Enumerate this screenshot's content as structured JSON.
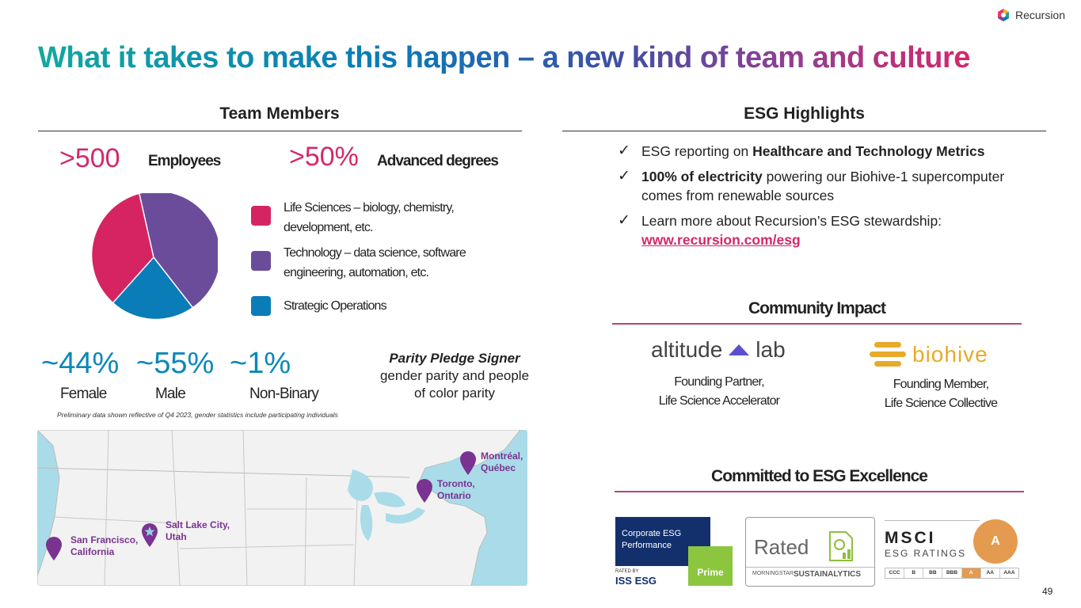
{
  "header": {
    "title": "What it takes to make this happen – a new kind of team and culture",
    "logo_text": "Recursion"
  },
  "team": {
    "heading": "Team Members",
    "employees_value": ">500",
    "employees_label": "Employees",
    "degrees_value": ">50%",
    "degrees_label": "Advanced degrees",
    "legend": [
      {
        "line1": "Life Sciences – biology, chemistry,",
        "line2": "development, etc.",
        "color": "#d62463"
      },
      {
        "line1": "Technology – data science, software",
        "line2": "engineering, automation, etc.",
        "color": "#6b4c9a"
      },
      {
        "line1": "Strategic Operations",
        "line2": "",
        "color": "#0a7cb8"
      }
    ],
    "stats": [
      {
        "value": "~44%",
        "label": "Female"
      },
      {
        "value": "~55%",
        "label": "Male"
      },
      {
        "value": "~1%",
        "label": "Non-Binary"
      }
    ],
    "pledge_title": "Parity Pledge Signer",
    "pledge_line1": "gender parity and people",
    "pledge_line2": "of color parity",
    "footnote": "Preliminary data shown reflective of Q4 2023, gender statistics include participating individuals"
  },
  "map": {
    "cities": [
      {
        "line1": "San Francisco,",
        "line2": "California"
      },
      {
        "line1": "Salt Lake City,",
        "line2": "Utah"
      },
      {
        "line1": "Toronto,",
        "line2": "Ontario"
      },
      {
        "line1": "Montréal,",
        "line2": "Québec"
      }
    ]
  },
  "esg": {
    "heading": "ESG Highlights",
    "item1_pre": "ESG reporting on ",
    "item1_bold": "Healthcare and Technology Metrics",
    "item2_bold": "100% of electricity",
    "item2_post": " powering our Biohive-1 supercomputer",
    "item2_line2": "comes from renewable sources",
    "item3_line1": "Learn more about Recursion’s ESG stewardship:",
    "item3_link": "www.recursion.com/esg"
  },
  "community": {
    "heading": "Community Impact",
    "altitude_a": "altitude",
    "altitude_b": "lab",
    "altitude_cap1": "Founding Partner,",
    "altitude_cap2": "Life Science Accelerator",
    "biohive_name": "biohive",
    "biohive_cap1": "Founding Member,",
    "biohive_cap2": "Life Science Collective"
  },
  "excellence": {
    "heading": "Committed to ESG Excellence",
    "iss_line1": "Corporate ESG",
    "iss_line2": "Performance",
    "iss_prime": "Prime",
    "iss_rated_by": "RATED BY",
    "iss_brand": "ISS ESG",
    "sust_rated": "Rated",
    "sust_morningstar": "MORNINGSTAR",
    "sust_brand": "SUSTAINALYTICS",
    "msci_brand": "MSCI",
    "msci_sub": "ESG RATINGS",
    "msci_grade": "A",
    "msci_scale": [
      "CCC",
      "B",
      "BB",
      "BBB",
      "A",
      "AA",
      "AAA"
    ]
  },
  "page_number": "49"
}
